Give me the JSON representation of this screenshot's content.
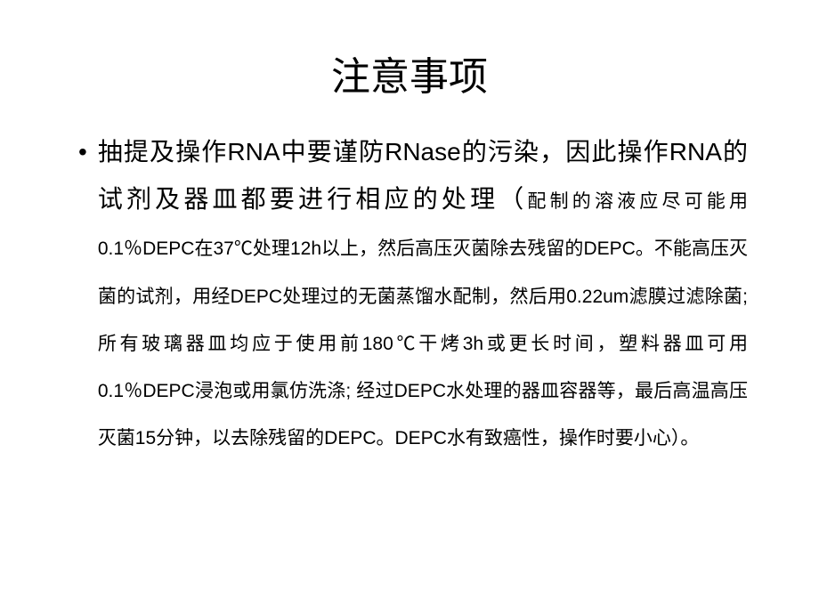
{
  "slide": {
    "title": "注意事项",
    "bullet_symbol": "•",
    "main_text": "抽提及操作RNA中要谨防RNase的污染，因此操作RNA的试剂及器皿都要进行相应的处理（",
    "detail_text": "配制的溶液应尽可能用0.1％DEPC在37℃处理12h以上，然后高压灭菌除去残留的DEPC。不能高压灭菌的试剂，用经DEPC处理过的无菌蒸馏水配制，然后用0.22um滤膜过滤除菌; 所有玻璃器皿均应于使用前180℃干烤3h或更长时间，塑料器皿可用0.1％DEPC浸泡或用氯仿洗涤; 经过DEPC水处理的器皿容器等，最后高温高压灭菌15分钟，以去除残留的DEPC。DEPC水有致癌性，操作时要小心）。",
    "colors": {
      "background": "#ffffff",
      "text": "#000000"
    },
    "fonts": {
      "title_size": 44,
      "main_size": 28,
      "detail_size": 21
    }
  }
}
